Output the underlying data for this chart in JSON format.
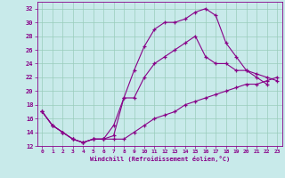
{
  "xlabel": "Windchill (Refroidissement éolien,°C)",
  "ylabel": "",
  "xlim": [
    -0.5,
    23.5
  ],
  "ylim": [
    12,
    33
  ],
  "xticks": [
    0,
    1,
    2,
    3,
    4,
    5,
    6,
    7,
    8,
    9,
    10,
    11,
    12,
    13,
    14,
    15,
    16,
    17,
    18,
    19,
    20,
    21,
    22,
    23
  ],
  "yticks": [
    12,
    14,
    16,
    18,
    20,
    22,
    24,
    26,
    28,
    30,
    32
  ],
  "background_color": "#c8eaea",
  "line_color": "#880088",
  "grid_color": "#99ccbb",
  "line1_x": [
    0,
    1,
    2,
    3,
    4,
    5,
    6,
    7,
    8,
    9,
    10,
    11,
    12,
    13,
    14,
    15,
    16,
    17,
    18,
    19,
    20,
    21,
    22
  ],
  "line1_y": [
    17,
    15,
    14,
    13,
    12.5,
    13,
    13,
    13.5,
    19,
    23,
    26.5,
    29,
    30,
    30,
    30.5,
    31.5,
    32,
    31,
    27,
    25,
    23,
    22,
    21
  ],
  "line2_x": [
    0,
    1,
    2,
    3,
    4,
    5,
    6,
    7,
    8,
    9,
    10,
    11,
    12,
    13,
    14,
    15,
    16,
    17,
    18,
    19,
    20,
    21,
    22,
    23
  ],
  "line2_y": [
    17,
    15,
    14,
    13,
    12.5,
    13,
    13,
    15,
    19,
    19,
    22,
    24,
    25,
    26,
    27,
    28,
    25,
    24,
    24,
    23,
    23,
    22.5,
    22,
    21.5
  ],
  "line3_x": [
    0,
    1,
    2,
    3,
    4,
    5,
    6,
    7,
    8,
    9,
    10,
    11,
    12,
    13,
    14,
    15,
    16,
    17,
    18,
    19,
    20,
    21,
    22,
    23
  ],
  "line3_y": [
    17,
    15,
    14,
    13,
    12.5,
    13,
    13,
    13,
    13,
    14,
    15,
    16,
    16.5,
    17,
    18,
    18.5,
    19,
    19.5,
    20,
    20.5,
    21,
    21,
    21.5,
    22
  ]
}
